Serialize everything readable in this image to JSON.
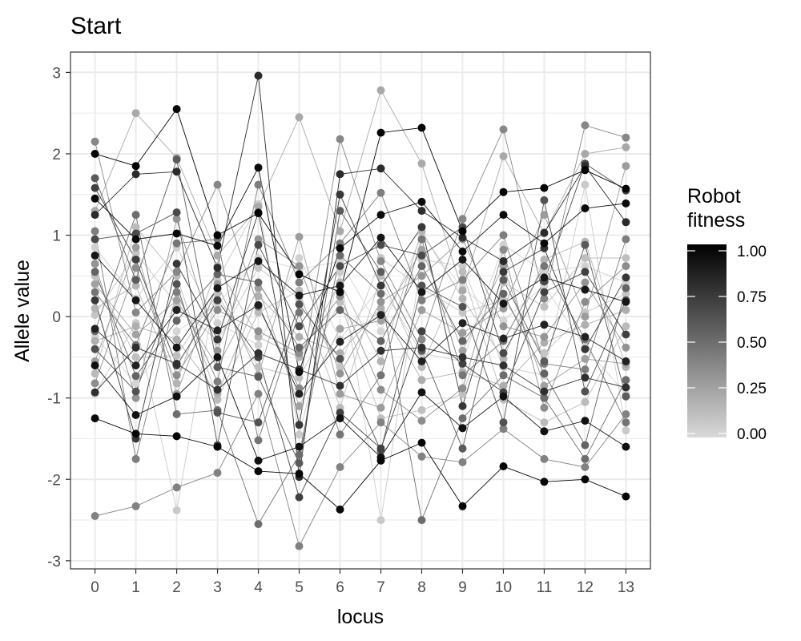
{
  "chart_data": {
    "type": "line",
    "title": "Start",
    "xlabel": "locus",
    "ylabel": "Allele value",
    "x_ticks": [
      "0",
      "1",
      "2",
      "3",
      "4",
      "5",
      "6",
      "7",
      "8",
      "9",
      "10",
      "11",
      "12",
      "13"
    ],
    "y_ticks": [
      "3",
      "2",
      "1",
      "0",
      "-1",
      "-2",
      "-3"
    ],
    "xlim": [
      -0.6,
      13.6
    ],
    "ylim": [
      -3.1,
      3.25
    ],
    "grid": true,
    "legend": {
      "title": "Robot fitness",
      "position": "right",
      "type": "gradient",
      "color_low": "#d9d9d9",
      "color_high": "#000000",
      "labels": [
        "1.00",
        "0.75",
        "0.50",
        "0.25",
        "0.00"
      ],
      "breaks": [
        1.0,
        0.75,
        0.5,
        0.25,
        0.0
      ]
    },
    "series": [
      {
        "fitness": 0.98,
        "values": [
          2.0,
          1.85,
          2.55,
          1.0,
          1.27,
          0.52,
          0.3,
          2.26,
          2.32,
          1.05,
          1.53,
          1.58,
          1.8,
          1.57
        ]
      },
      {
        "fitness": 0.97,
        "values": [
          -1.25,
          -1.44,
          -1.47,
          -1.6,
          -1.9,
          -1.93,
          -2.37,
          -1.77,
          -1.55,
          -2.33,
          -1.84,
          -2.03,
          -2.0,
          -2.21
        ]
      },
      {
        "fitness": 0.95,
        "values": [
          1.45,
          0.95,
          1.02,
          0.87,
          1.83,
          -0.68,
          0.84,
          1.25,
          1.41,
          0.8,
          1.25,
          0.9,
          1.33,
          1.39
        ]
      },
      {
        "fitness": 0.92,
        "values": [
          -0.6,
          -1.21,
          -0.98,
          -0.5,
          -1.77,
          -1.6,
          -1.25,
          -1.73,
          -0.93,
          -1.37,
          -0.98,
          -1.41,
          -1.28,
          -1.6
        ]
      },
      {
        "fitness": 0.9,
        "values": [
          0.75,
          0.2,
          -0.38,
          0.35,
          0.68,
          0.26,
          0.38,
          0.97,
          0.3,
          0.7,
          0.16,
          0.48,
          0.33,
          0.18
        ]
      },
      {
        "fitness": 0.85,
        "values": [
          -0.15,
          -0.6,
          0.08,
          -0.17,
          0.14,
          -0.95,
          -0.31,
          0.02,
          -0.55,
          -0.08,
          -0.27,
          -0.1,
          -0.25,
          -0.55
        ]
      },
      {
        "fitness": 0.8,
        "values": [
          1.25,
          1.75,
          1.78,
          0.6,
          2.96,
          -1.97,
          1.75,
          1.82,
          1.3,
          0.97,
          0.68,
          1.03,
          1.85,
          1.16
        ]
      },
      {
        "fitness": 0.78,
        "values": [
          -0.93,
          -0.38,
          -0.58,
          -0.9,
          -0.45,
          -0.65,
          -0.85,
          -0.42,
          -0.38,
          -0.5,
          -0.6,
          -0.92,
          -0.75,
          -0.87
        ]
      },
      {
        "fitness": 0.74,
        "values": [
          0.2,
          -1.5,
          0.65,
          -0.28,
          1.28,
          -1.33,
          1.5,
          0.38,
          1.1,
          -1.1,
          0.55,
          0.84,
          -0.4,
          0.48
        ]
      },
      {
        "fitness": 0.7,
        "values": [
          1.58,
          0.7,
          -0.6,
          0.2,
          -0.5,
          -2.22,
          -1.18,
          -1.62,
          -0.18,
          -0.58,
          -0.93,
          0.3,
          0.55,
          -0.22
        ]
      },
      {
        "fitness": 0.66,
        "values": [
          0.95,
          1.02,
          1.28,
          -1.58,
          0.88,
          -0.12,
          0.62,
          0.88,
          0.75,
          1.1,
          -0.45,
          0.43,
          1.88,
          1.55
        ]
      },
      {
        "fitness": 0.62,
        "values": [
          -0.4,
          -0.92,
          0.4,
          -1.18,
          -1.3,
          0.15,
          -0.52,
          -1.65,
          0.38,
          0.12,
          -1.3,
          1.43,
          -0.92,
          0.2
        ]
      },
      {
        "fitness": 0.58,
        "values": [
          1.7,
          0.45,
          1.93,
          -0.62,
          -0.74,
          -1.8,
          1.3,
          0.55,
          -0.42,
          -1.62,
          0.45,
          -0.55,
          0.88,
          -0.98
        ]
      },
      {
        "fitness": 0.54,
        "values": [
          0.55,
          -0.73,
          -0.05,
          0.52,
          0.42,
          -0.38,
          0.08,
          -0.3,
          0.62,
          -0.3,
          0.28,
          -0.7,
          -1.58,
          0.35
        ]
      },
      {
        "fitness": 0.5,
        "values": [
          -0.18,
          1.25,
          -1.2,
          -1.15,
          -2.55,
          -1.7,
          0.75,
          0.28,
          -2.5,
          -1.25,
          -0.72,
          -1.0,
          -1.75,
          -0.78
        ]
      },
      {
        "fitness": 0.46,
        "values": [
          0.3,
          -0.35,
          0.9,
          0.95,
          -1.52,
          0.05,
          -1.45,
          -0.72,
          0.95,
          -0.72,
          -0.3,
          0.62,
          -0.28,
          -1.3
        ]
      },
      {
        "fitness": 0.42,
        "values": [
          1.05,
          -1.75,
          0.3,
          -0.8,
          1.62,
          0.42,
          0.9,
          1.52,
          0.2,
          0.45,
          1.0,
          -0.58,
          -0.65,
          0.95
        ]
      },
      {
        "fitness": 0.4,
        "values": [
          -2.45,
          -2.33,
          -2.1,
          -1.92,
          -0.95,
          -2.82,
          -1.85,
          -1.3,
          -1.72,
          -1.79,
          -1.38,
          -1.75,
          -1.85,
          -1.2
        ]
      },
      {
        "fitness": 0.38,
        "values": [
          2.15,
          0.05,
          0.55,
          1.62,
          0.12,
          -0.88,
          2.18,
          0.68,
          -0.28,
          1.2,
          2.3,
          0.22,
          2.35,
          2.2
        ]
      },
      {
        "fitness": 0.35,
        "values": [
          -0.82,
          0.6,
          -0.72,
          0.08,
          -0.18,
          -0.45,
          0.25,
          -0.9,
          -1.28,
          -0.88,
          0.82,
          -1.12,
          0.18,
          0.62
        ]
      },
      {
        "fitness": 0.32,
        "values": [
          0.65,
          -1.0,
          1.2,
          -0.42,
          0.95,
          0.62,
          -0.7,
          0.18,
          0.5,
          0.95,
          -0.12,
          -0.25,
          0.42,
          -0.38
        ]
      },
      {
        "fitness": 0.28,
        "values": [
          -0.55,
          0.85,
          -0.95,
          0.4,
          -0.72,
          0.98,
          -0.95,
          -1.12,
          0.08,
          -0.2,
          0.1,
          1.25,
          0.0,
          1.85
        ]
      },
      {
        "fitness": 0.26,
        "values": [
          0.4,
          -0.22,
          0.2,
          -0.62,
          0.35,
          -1.1,
          -0.15,
          -0.05,
          0.82,
          -0.42,
          0.62,
          -0.85,
          -0.52,
          -0.58
        ]
      },
      {
        "fitness": 0.22,
        "values": [
          1.3,
          2.5,
          1.95,
          0.75,
          1.35,
          2.45,
          1.05,
          2.78,
          1.88,
          0.32,
          1.97,
          1.02,
          2.0,
          2.08
        ]
      },
      {
        "fitness": 0.2,
        "values": [
          -0.3,
          -0.12,
          -0.28,
          -0.95,
          0.25,
          -0.25,
          -0.45,
          0.1,
          -0.78,
          -0.68,
          -0.85,
          -0.32,
          -0.1,
          0.08
        ]
      },
      {
        "fitness": 0.17,
        "values": [
          0.1,
          0.38,
          -0.82,
          0.62,
          -0.25,
          -0.5,
          0.42,
          -0.55,
          1.05,
          0.22,
          -0.52,
          0.7,
          0.92,
          -0.62
        ]
      },
      {
        "fitness": 0.14,
        "values": [
          -0.7,
          1.1,
          0.5,
          -1.02,
          0.05,
          0.32,
          -1.12,
          0.5,
          -0.62,
          0.55,
          -1.02,
          -1.3,
          -1.05,
          -0.12
        ]
      },
      {
        "fitness": 0.12,
        "values": [
          0.5,
          -0.5,
          -0.48,
          0.28,
          -0.62,
          -0.75,
          0.18,
          -1.25,
          -1.15,
          -0.95,
          0.42,
          0.12,
          0.72,
          0.72
        ]
      },
      {
        "fitness": 0.09,
        "values": [
          0.02,
          0.78,
          0.15,
          -0.3,
          0.6,
          0.22,
          -0.62,
          0.72,
          0.35,
          0.05,
          0.2,
          -0.45,
          0.05,
          0.28
        ]
      },
      {
        "fitness": 0.07,
        "values": [
          -0.95,
          -0.08,
          -2.38,
          0.45,
          1.38,
          -1.45,
          0.55,
          -2.5,
          0.7,
          0.62,
          -0.62,
          -0.72,
          1.62,
          -1.4
        ]
      },
      {
        "fitness": 0.04,
        "values": [
          0.85,
          0.22,
          0.85,
          -0.08,
          -0.35,
          0.72,
          -0.28,
          0.38,
          -0.45,
          -0.55,
          0.88,
          0.55,
          0.62,
          0.42
        ]
      },
      {
        "fitness": 0.02,
        "values": [
          -0.25,
          -0.82,
          -0.18,
          0.15,
          0.72,
          0.58,
          0.68,
          -0.18,
          1.0,
          0.35,
          -0.05,
          0.38,
          -0.38,
          -0.95
        ]
      }
    ]
  }
}
